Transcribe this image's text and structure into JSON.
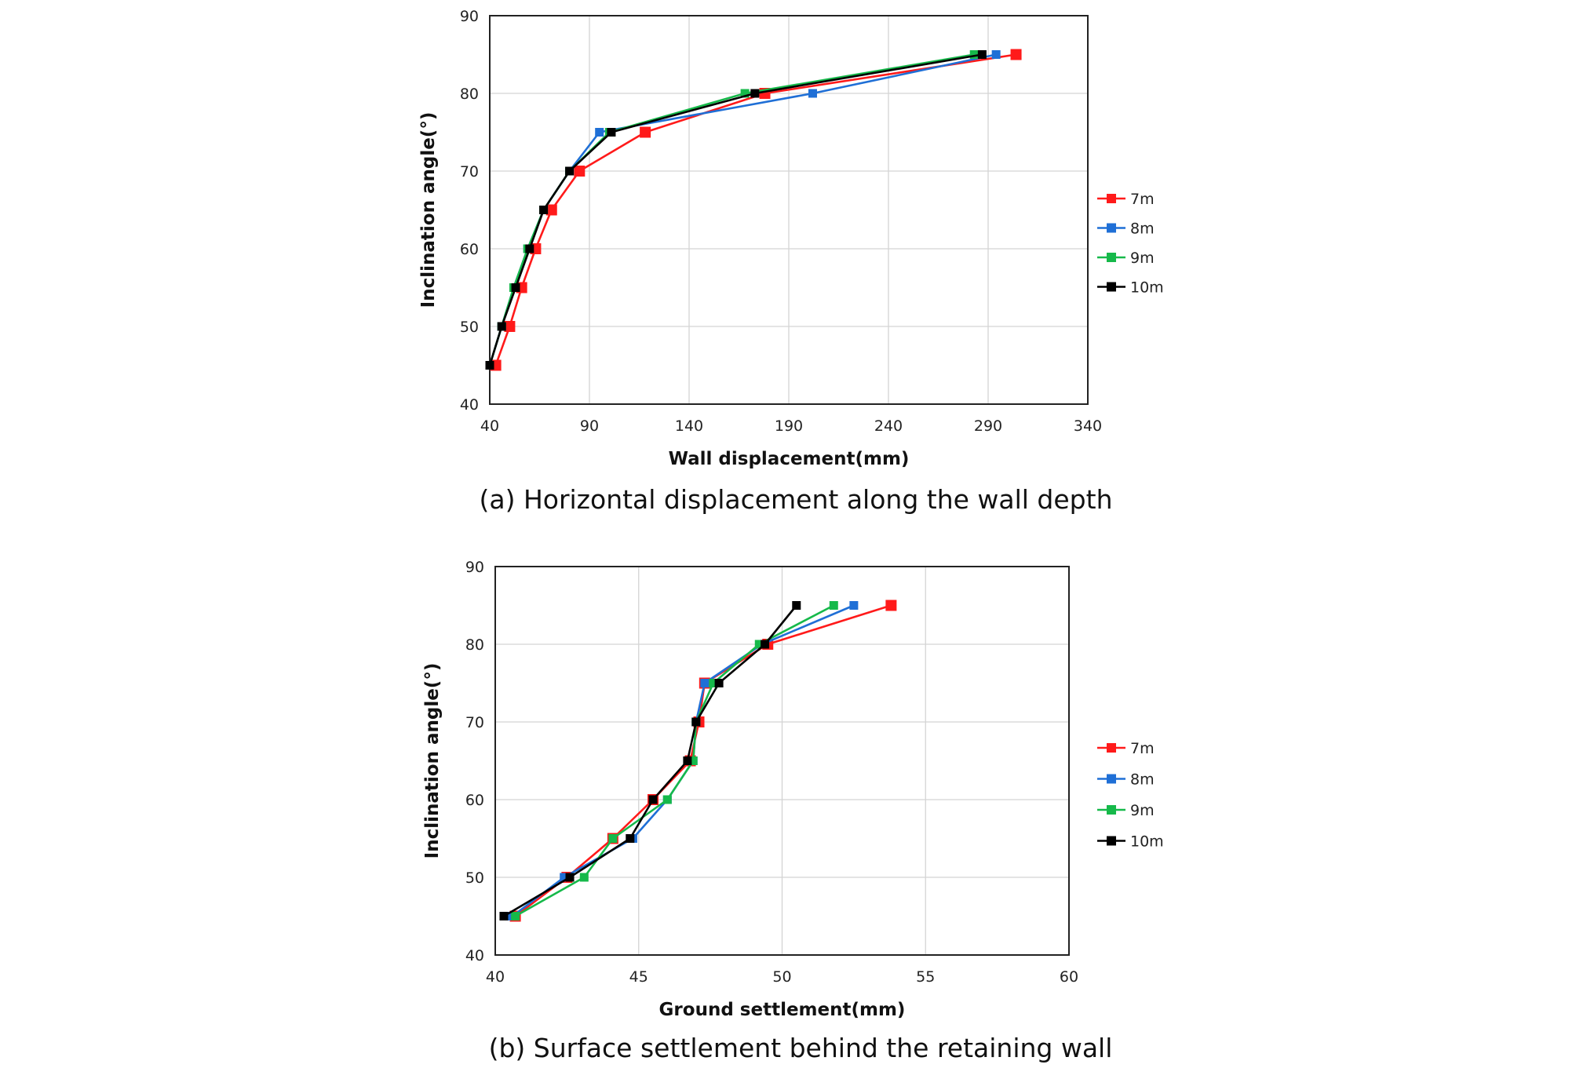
{
  "chart_data": [
    {
      "type": "line",
      "caption": "(a) Horizontal displacement along the wall depth",
      "xlabel": "Wall displacement(mm)",
      "ylabel": "Inclination angle(°)",
      "xlim": [
        40,
        340
      ],
      "ylim": [
        40,
        90
      ],
      "xticks": [
        40,
        90,
        140,
        190,
        240,
        290,
        340
      ],
      "yticks": [
        40,
        50,
        60,
        70,
        80,
        90
      ],
      "grid": true,
      "legend_position": "right",
      "series": [
        {
          "name": "7m",
          "color": "#ff1a1a",
          "x": [
            43,
            50,
            56,
            63,
            71,
            85,
            118,
            178,
            304
          ],
          "y": [
            45,
            50,
            55,
            60,
            65,
            70,
            75,
            80,
            85
          ]
        },
        {
          "name": "8m",
          "color": "#1f6fd6",
          "x": [
            40,
            46,
            52,
            59,
            67,
            80,
            95,
            202,
            294
          ],
          "y": [
            45,
            50,
            55,
            60,
            65,
            70,
            75,
            80,
            85
          ]
        },
        {
          "name": "9m",
          "color": "#16b94a",
          "x": [
            40,
            46,
            52,
            59,
            67,
            80,
            100,
            168,
            283
          ],
          "y": [
            45,
            50,
            55,
            60,
            65,
            70,
            75,
            80,
            85
          ]
        },
        {
          "name": "10m",
          "color": "#000000",
          "x": [
            40,
            46,
            53,
            60,
            67,
            80,
            101,
            173,
            287
          ],
          "y": [
            45,
            50,
            55,
            60,
            65,
            70,
            75,
            80,
            85
          ]
        }
      ]
    },
    {
      "type": "line",
      "caption": "(b) Surface settlement behind the retaining wall",
      "xlabel": "Ground settlement(mm)",
      "ylabel": "Inclination angle(°)",
      "xlim": [
        40,
        60
      ],
      "ylim": [
        40,
        90
      ],
      "xticks": [
        40,
        45,
        50,
        55,
        60
      ],
      "yticks": [
        40,
        50,
        60,
        70,
        80,
        90
      ],
      "grid": true,
      "legend_position": "right",
      "series": [
        {
          "name": "7m",
          "color": "#ff1a1a",
          "x": [
            40.7,
            42.5,
            44.1,
            45.5,
            46.8,
            47.1,
            47.3,
            49.5,
            53.8
          ],
          "y": [
            45,
            50,
            55,
            60,
            65,
            70,
            75,
            80,
            85
          ]
        },
        {
          "name": "8m",
          "color": "#1f6fd6",
          "x": [
            40.6,
            42.4,
            44.8,
            46.0,
            46.9,
            47.0,
            47.3,
            49.3,
            52.5
          ],
          "y": [
            45,
            50,
            55,
            60,
            65,
            70,
            75,
            80,
            85
          ]
        },
        {
          "name": "9m",
          "color": "#16b94a",
          "x": [
            40.7,
            43.1,
            44.1,
            46.0,
            46.9,
            47.0,
            47.6,
            49.2,
            51.8
          ],
          "y": [
            45,
            50,
            55,
            60,
            65,
            70,
            75,
            80,
            85
          ]
        },
        {
          "name": "10m",
          "color": "#000000",
          "x": [
            40.3,
            42.6,
            44.7,
            45.5,
            46.7,
            47.0,
            47.8,
            49.4,
            50.5
          ],
          "y": [
            45,
            50,
            55,
            60,
            65,
            70,
            75,
            80,
            85
          ]
        }
      ]
    }
  ]
}
